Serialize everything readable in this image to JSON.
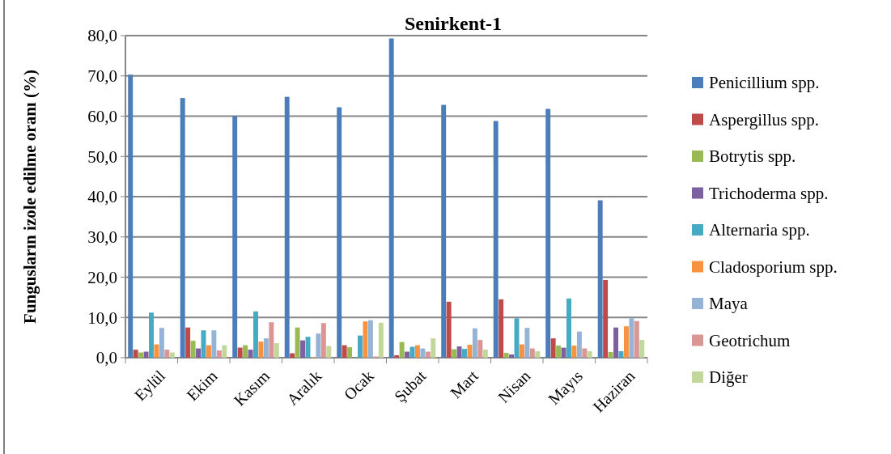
{
  "chart_data": {
    "type": "bar",
    "title": "Senirkent-1",
    "ylabel": "Fungusların izole edilme oranı (%)",
    "categories": [
      "Eylül",
      "Ekim",
      "Kasım",
      "Aralık",
      "Ocak",
      "Şubat",
      "Mart",
      "Nisan",
      "Mayıs",
      "Haziran"
    ],
    "series": [
      {
        "name": "Penicillium spp.",
        "color": "#4a7ebb",
        "values": [
          70.3,
          64.5,
          60.0,
          64.8,
          62.2,
          79.3,
          62.8,
          58.8,
          61.8,
          39.1
        ]
      },
      {
        "name": "Aspergillus spp.",
        "color": "#be4b48",
        "values": [
          2.0,
          7.5,
          2.5,
          1.1,
          3.1,
          0.6,
          13.9,
          14.5,
          4.8,
          19.3
        ]
      },
      {
        "name": "Botrytis spp.",
        "color": "#98b954",
        "values": [
          1.3,
          4.2,
          3.1,
          7.5,
          2.6,
          3.9,
          2.1,
          1.2,
          3.0,
          1.4
        ]
      },
      {
        "name": "Trichoderma spp.",
        "color": "#7d60a0",
        "values": [
          1.5,
          2.3,
          2.0,
          4.3,
          null,
          1.5,
          2.8,
          0.8,
          2.5,
          7.5
        ]
      },
      {
        "name": "Alternaria spp.",
        "color": "#46aac5",
        "values": [
          11.2,
          6.8,
          11.5,
          5.2,
          5.5,
          2.7,
          2.2,
          9.8,
          14.7,
          1.6
        ]
      },
      {
        "name": "Cladosporium spp.",
        "color": "#f69240",
        "values": [
          3.3,
          3.1,
          4.0,
          0.2,
          9.0,
          3.1,
          3.2,
          3.3,
          3.0,
          7.8
        ]
      },
      {
        "name": "Maya",
        "color": "#95b3d7",
        "values": [
          7.4,
          6.8,
          4.8,
          6.0,
          9.3,
          2.3,
          7.3,
          7.4,
          6.5,
          9.8
        ]
      },
      {
        "name": "Geotrichum",
        "color": "#d99694",
        "values": [
          2.0,
          1.8,
          8.8,
          8.6,
          0.3,
          1.5,
          4.4,
          2.3,
          2.3,
          9.1
        ]
      },
      {
        "name": "Diğer",
        "color": "#c3d69b",
        "values": [
          1.3,
          3.1,
          3.6,
          2.9,
          8.7,
          4.8,
          2.0,
          1.6,
          1.6,
          4.4
        ]
      }
    ],
    "ylim": [
      0,
      80
    ],
    "yticks": [
      {
        "value": 0,
        "label": "0,0"
      },
      {
        "value": 10,
        "label": "10,0"
      },
      {
        "value": 20,
        "label": "20,0"
      },
      {
        "value": 30,
        "label": "30,0"
      },
      {
        "value": 40,
        "label": "40,0"
      },
      {
        "value": 50,
        "label": "50,0"
      },
      {
        "value": 60,
        "label": "60,0"
      },
      {
        "value": 70,
        "label": "70,0"
      },
      {
        "value": 80,
        "label": "80,0"
      }
    ],
    "grid": "y",
    "legend": "right"
  }
}
